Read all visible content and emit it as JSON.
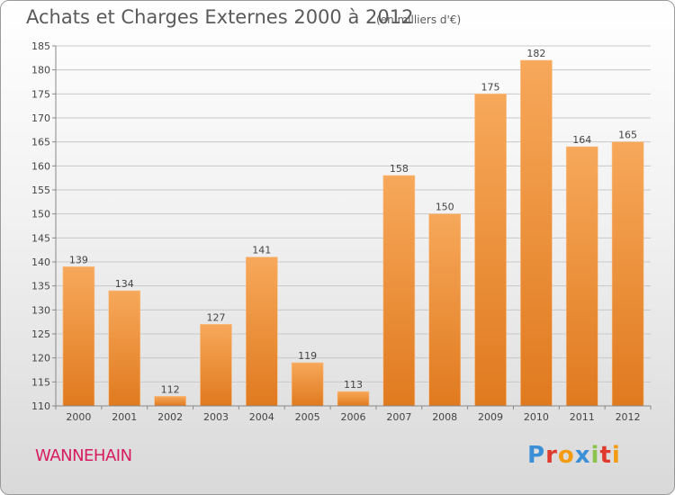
{
  "header": {
    "title": "Achats et Charges Externes 2000 à 2012",
    "unit": "(en milliers d'€)"
  },
  "footer": {
    "commune": "WANNEHAIN",
    "logo_text": "Proxiti"
  },
  "colors": {
    "bar_light": "#f7a85a",
    "bar_dark": "#e07a1f",
    "commune_text": "#d81b60",
    "logo_letters": [
      "#3a8fd6",
      "#e03a2e",
      "#f39c12",
      "#3a8fd6",
      "#8bc34a",
      "#e03a2e",
      "#f39c12"
    ]
  },
  "chart_data": {
    "type": "bar",
    "categories": [
      "2000",
      "2001",
      "2002",
      "2003",
      "2004",
      "2005",
      "2006",
      "2007",
      "2008",
      "2009",
      "2010",
      "2011",
      "2012"
    ],
    "values": [
      139,
      134,
      112,
      127,
      141,
      119,
      113,
      158,
      150,
      175,
      182,
      164,
      165
    ],
    "title": "Achats et Charges Externes 2000 à 2012",
    "xlabel": "",
    "ylabel": "",
    "ylim": [
      110,
      185
    ],
    "yticks": [
      110,
      115,
      120,
      125,
      130,
      135,
      140,
      145,
      150,
      155,
      160,
      165,
      170,
      175,
      180,
      185
    ],
    "grid": true,
    "data_labels": true
  }
}
